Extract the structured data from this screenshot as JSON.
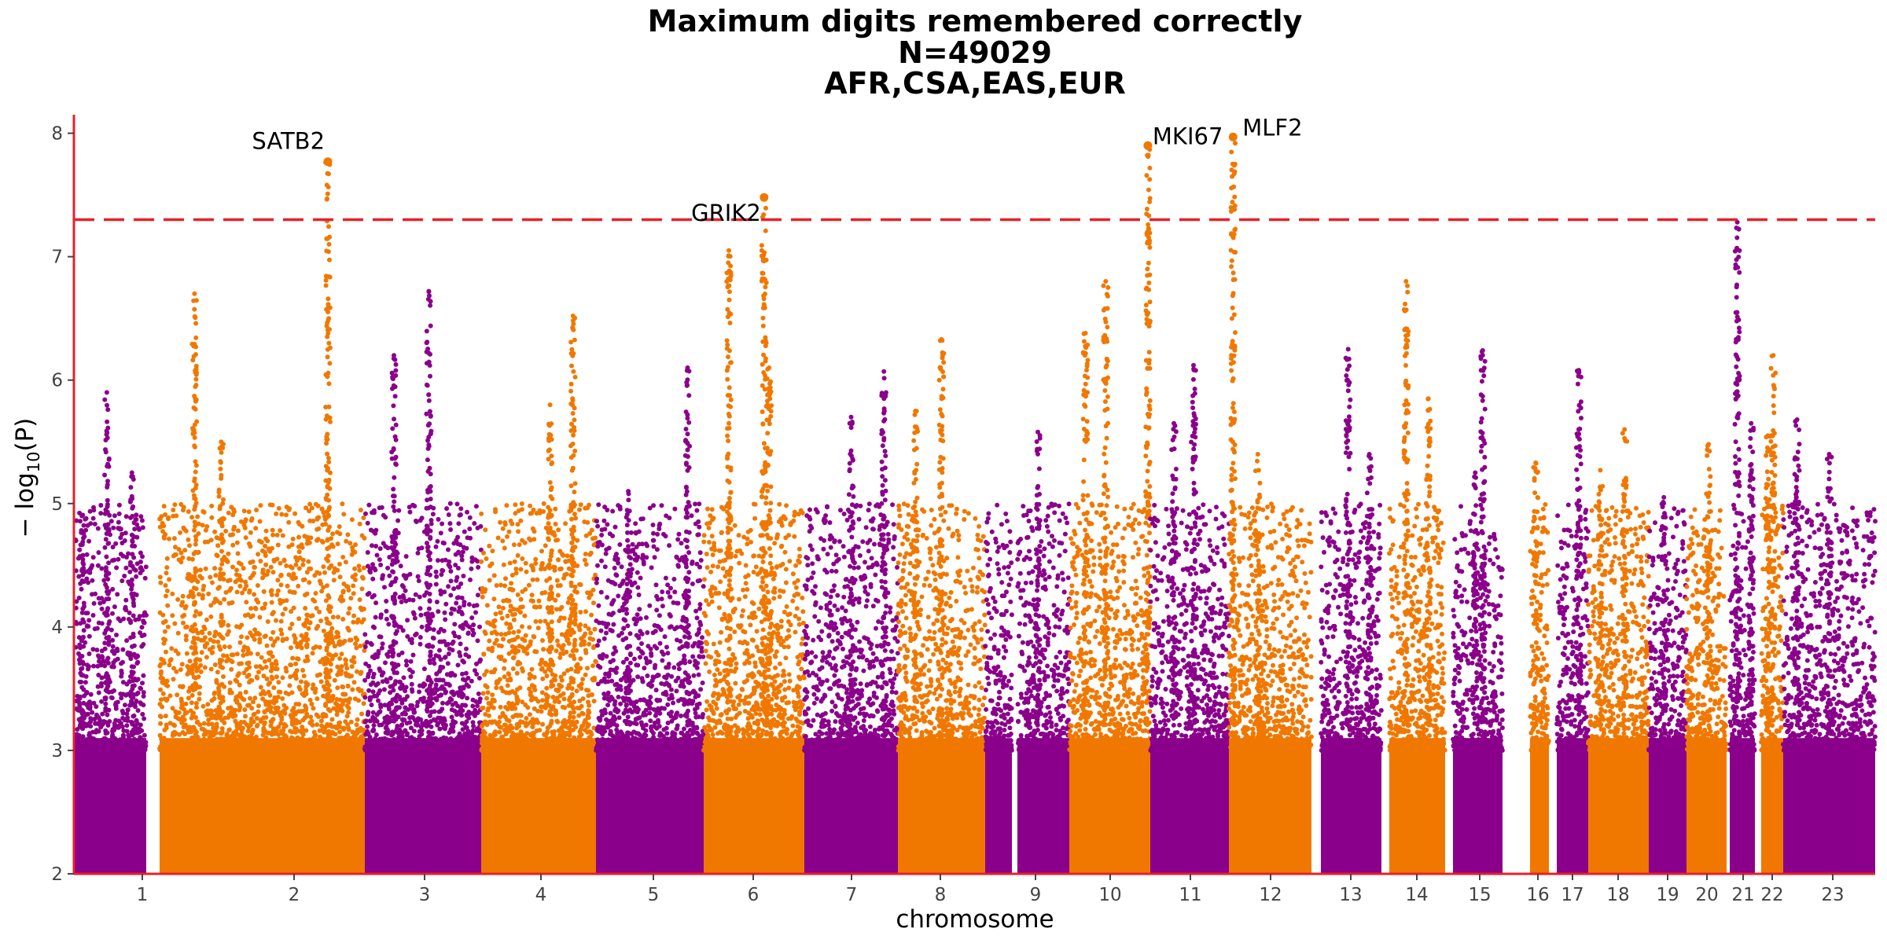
{
  "chart_data": {
    "type": "scatter",
    "subtype": "manhattan",
    "title": [
      "Maximum digits remembered correctly",
      "N=49029",
      "AFR,CSA,EAS,EUR"
    ],
    "xlabel": "chromosome",
    "ylabel_base": "− log",
    "ylabel_sub": "10",
    "ylabel_tail": "(P)",
    "ylim": [
      2,
      8.15
    ],
    "yticks": [
      2,
      3,
      4,
      5,
      6,
      7,
      8
    ],
    "threshold": 7.3,
    "grid": false,
    "colors": {
      "odd": "#8B008B",
      "even": "#F07800",
      "threshold": "#E8202A",
      "axis": "#E8202A"
    },
    "chromosomes": [
      {
        "label": "1",
        "peaks": [
          [
            0.45,
            5.9
          ],
          [
            0.1,
            4.9
          ],
          [
            0.8,
            5.25
          ]
        ]
      },
      {
        "label": "2",
        "peaks": [
          [
            0.17,
            6.7
          ],
          [
            0.82,
            7.77
          ],
          [
            0.3,
            5.5
          ]
        ]
      },
      {
        "label": "3",
        "peaks": [
          [
            0.55,
            6.72
          ],
          [
            0.25,
            6.2
          ]
        ]
      },
      {
        "label": "4",
        "peaks": [
          [
            0.8,
            6.52
          ],
          [
            0.6,
            5.8
          ]
        ]
      },
      {
        "label": "5",
        "peaks": [
          [
            0.85,
            6.1
          ],
          [
            0.3,
            5.1
          ]
        ]
      },
      {
        "label": "6",
        "peaks": [
          [
            0.25,
            7.05
          ],
          [
            0.6,
            7.48
          ],
          [
            0.65,
            6.1
          ]
        ]
      },
      {
        "label": "7",
        "peaks": [
          [
            0.85,
            6.07
          ],
          [
            0.5,
            5.7
          ]
        ]
      },
      {
        "label": "8",
        "peaks": [
          [
            0.5,
            6.33
          ],
          [
            0.2,
            5.75
          ]
        ]
      },
      {
        "label": "9",
        "peaks": [
          [
            0.6,
            5.58
          ]
        ]
      },
      {
        "label": "10",
        "peaks": [
          [
            0.45,
            6.8
          ],
          [
            0.97,
            7.9
          ],
          [
            0.2,
            6.38
          ]
        ]
      },
      {
        "label": "11",
        "peaks": [
          [
            0.55,
            6.12
          ],
          [
            0.3,
            5.65
          ]
        ]
      },
      {
        "label": "12",
        "peaks": [
          [
            0.05,
            7.97
          ],
          [
            0.35,
            5.4
          ]
        ]
      },
      {
        "label": "13",
        "peaks": [
          [
            0.45,
            6.25
          ],
          [
            0.8,
            5.4
          ]
        ]
      },
      {
        "label": "14",
        "peaks": [
          [
            0.3,
            6.8
          ],
          [
            0.7,
            5.85
          ]
        ]
      },
      {
        "label": "15",
        "peaks": [
          [
            0.6,
            6.24
          ],
          [
            0.45,
            5.25
          ]
        ]
      },
      {
        "label": "16",
        "peaks": [
          [
            0.3,
            5.33
          ]
        ]
      },
      {
        "label": "17",
        "peaks": [
          [
            0.7,
            6.08
          ]
        ]
      },
      {
        "label": "18",
        "peaks": [
          [
            0.6,
            5.6
          ],
          [
            0.2,
            5.27
          ]
        ]
      },
      {
        "label": "19",
        "peaks": [
          [
            0.4,
            5.05
          ]
        ]
      },
      {
        "label": "20",
        "peaks": [
          [
            0.55,
            5.48
          ]
        ]
      },
      {
        "label": "21",
        "peaks": [
          [
            0.3,
            7.28
          ],
          [
            0.85,
            5.65
          ]
        ]
      },
      {
        "label": "22",
        "peaks": [
          [
            0.55,
            6.2
          ],
          [
            0.3,
            5.55
          ]
        ]
      },
      {
        "label": "23",
        "peaks": [
          [
            0.15,
            5.68
          ],
          [
            0.5,
            5.4
          ]
        ]
      }
    ],
    "annotations": [
      {
        "label": "SATB2",
        "chr": "2",
        "pos": 0.82,
        "y": 7.77
      },
      {
        "label": "GRIK2",
        "chr": "6",
        "pos": 0.6,
        "y": 7.48
      },
      {
        "label": "MKI67",
        "chr": "10",
        "pos": 0.97,
        "y": 7.9
      },
      {
        "label": "MLF2",
        "chr": "12",
        "pos": 0.05,
        "y": 7.97
      }
    ]
  }
}
